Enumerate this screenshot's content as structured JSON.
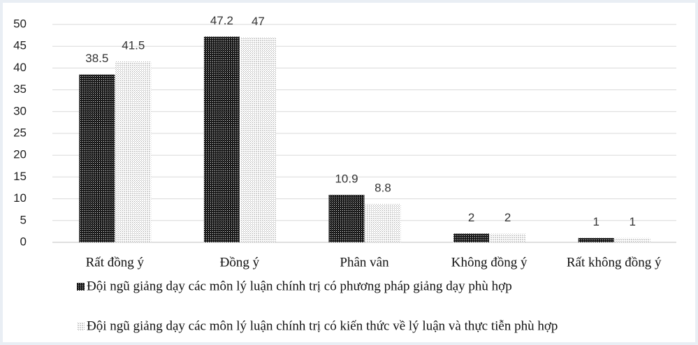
{
  "chart_data": {
    "type": "bar",
    "categories": [
      "Rất đồng ý",
      "Đồng ý",
      "Phân vân",
      "Không đồng ý",
      "Rất không đồng ý"
    ],
    "series": [
      {
        "name": "Đội ngũ giảng dạy các môn lý luận chính trị có phương pháp giảng dạy phù hợp",
        "color": "#111111",
        "values": [
          38.5,
          47.2,
          10.9,
          2,
          1
        ]
      },
      {
        "name": "Đội ngũ giảng dạy các môn lý luận chính trị có kiến thức về lý luận và thực tiễn phù hợp",
        "color": "#a6a6a6",
        "values": [
          41.5,
          47,
          8.8,
          2,
          1
        ]
      }
    ],
    "ylim": [
      0,
      50
    ],
    "yticks": [
      0,
      5,
      10,
      15,
      20,
      25,
      30,
      35,
      40,
      45,
      50
    ],
    "grid": true,
    "legend": "bottom"
  }
}
